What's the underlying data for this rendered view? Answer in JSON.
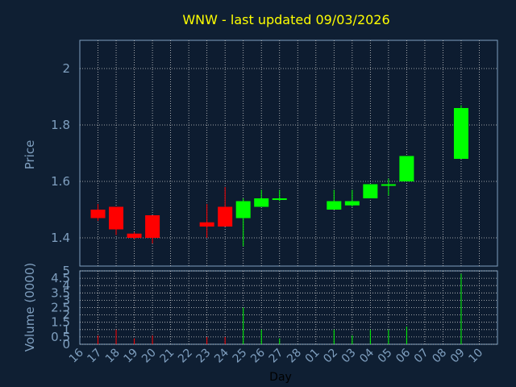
{
  "chart_data": {
    "type": "candlestick",
    "title": "WNW - last updated 09/03/2026",
    "xlabel": "Day",
    "ylabel": "Price",
    "volume_label": "Volume (0000)",
    "x_ticks": [
      "16",
      "17",
      "18",
      "19",
      "20",
      "21",
      "22",
      "23",
      "24",
      "25",
      "26",
      "27",
      "28",
      "01",
      "02",
      "03",
      "04",
      "05",
      "06",
      "07",
      "08",
      "09",
      "10"
    ],
    "price_ylim": [
      1.3,
      2.1
    ],
    "price_ticks": [
      "1.4",
      "1.6",
      "1.8",
      "2"
    ],
    "volume_ylim": [
      0,
      5
    ],
    "volume_ticks": [
      "0",
      "0.5",
      "1",
      "1.5",
      "2",
      "2.5",
      "3",
      "3.5",
      "4",
      "4.5",
      "5"
    ],
    "grid": true,
    "colors": {
      "background": "#0f1f33",
      "plot_background": "#0d1c30",
      "title": "#ffff00",
      "axis_label": "#7f9fbf",
      "tick_label": "#7f9fbf",
      "grid": "#cccccc",
      "up": "#00ff00",
      "down": "#ff0000"
    },
    "candles": [
      {
        "day": "17",
        "open": 1.5,
        "high": 1.52,
        "low": 1.46,
        "close": 1.47
      },
      {
        "day": "18",
        "open": 1.51,
        "high": 1.51,
        "low": 1.41,
        "close": 1.43
      },
      {
        "day": "19",
        "open": 1.415,
        "high": 1.42,
        "low": 1.395,
        "close": 1.4
      },
      {
        "day": "20",
        "open": 1.48,
        "high": 1.48,
        "low": 1.38,
        "close": 1.4
      },
      {
        "day": "23",
        "open": 1.455,
        "high": 1.52,
        "low": 1.4,
        "close": 1.44
      },
      {
        "day": "24",
        "open": 1.51,
        "high": 1.58,
        "low": 1.44,
        "close": 1.44
      },
      {
        "day": "25",
        "open": 1.47,
        "high": 1.54,
        "low": 1.37,
        "close": 1.53
      },
      {
        "day": "26",
        "open": 1.51,
        "high": 1.57,
        "low": 1.51,
        "close": 1.54
      },
      {
        "day": "27",
        "open": 1.535,
        "high": 1.57,
        "low": 1.53,
        "close": 1.54
      },
      {
        "day": "02",
        "open": 1.5,
        "high": 1.57,
        "low": 1.5,
        "close": 1.53
      },
      {
        "day": "03",
        "open": 1.515,
        "high": 1.57,
        "low": 1.51,
        "close": 1.53
      },
      {
        "day": "04",
        "open": 1.54,
        "high": 1.59,
        "low": 1.54,
        "close": 1.59
      },
      {
        "day": "05",
        "open": 1.585,
        "high": 1.61,
        "low": 1.55,
        "close": 1.59
      },
      {
        "day": "06",
        "open": 1.6,
        "high": 1.69,
        "low": 1.6,
        "close": 1.69
      },
      {
        "day": "09",
        "open": 1.68,
        "high": 1.87,
        "low": 1.68,
        "close": 1.86
      }
    ],
    "volume": [
      {
        "day": "17",
        "value": 0.6,
        "color": "down"
      },
      {
        "day": "18",
        "value": 1.0,
        "color": "down"
      },
      {
        "day": "19",
        "value": 0.4,
        "color": "down"
      },
      {
        "day": "20",
        "value": 0.6,
        "color": "down"
      },
      {
        "day": "23",
        "value": 0.5,
        "color": "down"
      },
      {
        "day": "24",
        "value": 0.5,
        "color": "down"
      },
      {
        "day": "25",
        "value": 2.5,
        "color": "up"
      },
      {
        "day": "26",
        "value": 1.0,
        "color": "up"
      },
      {
        "day": "27",
        "value": 0.4,
        "color": "up"
      },
      {
        "day": "02",
        "value": 1.0,
        "color": "up"
      },
      {
        "day": "03",
        "value": 0.6,
        "color": "up"
      },
      {
        "day": "04",
        "value": 1.0,
        "color": "up"
      },
      {
        "day": "05",
        "value": 1.0,
        "color": "up"
      },
      {
        "day": "06",
        "value": 1.2,
        "color": "up"
      },
      {
        "day": "09",
        "value": 4.8,
        "color": "up"
      }
    ]
  }
}
